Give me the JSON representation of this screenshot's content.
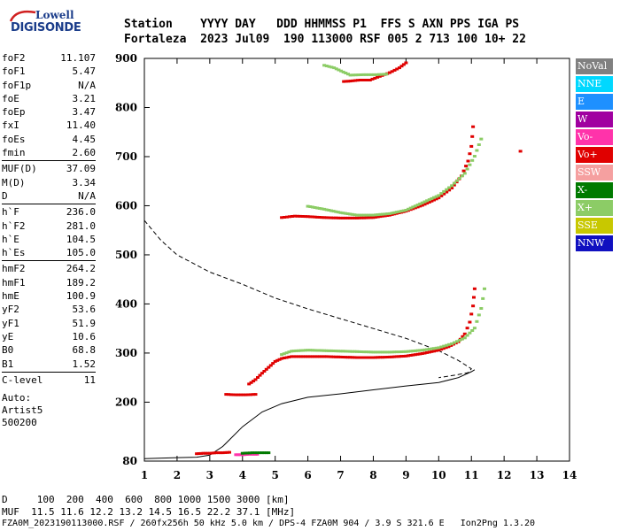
{
  "logo": {
    "line1": "Lowell",
    "line2": "DIGISONDE"
  },
  "header": {
    "line1": "Station    YYYY DAY   DDD HHMMSS P1  FFS S AXN PPS IGA PS",
    "line2": "Fortaleza  2023 Jul09  190 113000 RSF 005 2 713 100 10+ 22"
  },
  "params": [
    {
      "k": "foF2",
      "v": "11.107"
    },
    {
      "k": "foF1",
      "v": "5.47"
    },
    {
      "k": "foF1p",
      "v": "N/A"
    },
    {
      "k": "foE",
      "v": "3.21"
    },
    {
      "k": "foEp",
      "v": "3.47"
    },
    {
      "k": "fxI",
      "v": "11.40"
    },
    {
      "k": "foEs",
      "v": "4.45"
    },
    {
      "k": "fmin",
      "v": "2.60"
    },
    {
      "k": "MUF(D)",
      "v": "37.09"
    },
    {
      "k": "M(D)",
      "v": "3.34"
    },
    {
      "k": "D",
      "v": "N/A"
    },
    {
      "k": "h`F",
      "v": "236.0"
    },
    {
      "k": "h`F2",
      "v": "281.0"
    },
    {
      "k": "h`E",
      "v": "104.5"
    },
    {
      "k": "h`Es",
      "v": "105.0"
    },
    {
      "k": "hmF2",
      "v": "264.2"
    },
    {
      "k": "hmF1",
      "v": "189.2"
    },
    {
      "k": "hmE",
      "v": "100.9"
    },
    {
      "k": "yF2",
      "v": "53.6"
    },
    {
      "k": "yF1",
      "v": "51.9"
    },
    {
      "k": "yE",
      "v": "10.6"
    },
    {
      "k": "B0",
      "v": "68.8"
    },
    {
      "k": "B1",
      "v": "1.52"
    },
    {
      "k": "C-level",
      "v": "11"
    }
  ],
  "auto": {
    "l1": "Auto:",
    "l2": "Artist5",
    "l3": "500200"
  },
  "legend": [
    {
      "label": "NoVal",
      "color": "#808080"
    },
    {
      "label": "NNE",
      "color": "#00d8ff"
    },
    {
      "label": "E",
      "color": "#1e90ff"
    },
    {
      "label": "W",
      "color": "#a000a0"
    },
    {
      "label": "Vo-",
      "color": "#ff33aa"
    },
    {
      "label": "Vo+",
      "color": "#e00000"
    },
    {
      "label": "SSW",
      "color": "#f5a0a0"
    },
    {
      "label": "X-",
      "color": "#007a00"
    },
    {
      "label": "X+",
      "color": "#8ccc66"
    },
    {
      "label": "SSE",
      "color": "#c8c800"
    },
    {
      "label": "NNW",
      "color": "#1010c0"
    }
  ],
  "footer": {
    "line1": "D     100  200  400  600  800 1000 1500 3000 [km]",
    "line2": "MUF  11.5 11.6 12.2 13.2 14.5 16.5 22.2 37.1 [MHz]",
    "line3": "FZA0M_2023190113000.RSF / 260fx256h 50 kHz 5.0 km / DPS-4 FZA0M 904 / 3.9 S 321.6 E   Ion2Png 1.3.20"
  },
  "chart_data": {
    "type": "scatter",
    "xlabel": "",
    "ylabel": "",
    "xlim": [
      1,
      14
    ],
    "ylim": [
      80,
      900
    ],
    "x_ticks": [
      "1",
      "2",
      "3",
      "4",
      "5",
      "6",
      "7",
      "8",
      "9",
      "10",
      "11",
      "12",
      "13",
      "14"
    ],
    "y_ticks": [
      "80",
      "200",
      "300",
      "400",
      "500",
      "600",
      "700",
      "800",
      "900"
    ],
    "traces": [
      {
        "name": "E/Es O-mode",
        "color": "#e00000",
        "points": [
          [
            2.6,
            94
          ],
          [
            2.8,
            95
          ],
          [
            3.0,
            95
          ],
          [
            3.2,
            96
          ],
          [
            3.4,
            96
          ],
          [
            3.6,
            97
          ]
        ]
      },
      {
        "name": "E/Es pink",
        "color": "#ff33aa",
        "points": [
          [
            3.8,
            92
          ],
          [
            4.0,
            92
          ],
          [
            4.2,
            93
          ],
          [
            4.45,
            93
          ]
        ]
      },
      {
        "name": "E/Es X-mode",
        "color": "#007a00",
        "points": [
          [
            4.0,
            95
          ],
          [
            4.3,
            96
          ],
          [
            4.6,
            96
          ],
          [
            4.8,
            96
          ]
        ]
      },
      {
        "name": "F O-mode",
        "color": "#e00000",
        "points": [
          [
            4.2,
            236
          ],
          [
            4.4,
            245
          ],
          [
            4.6,
            258
          ],
          [
            4.8,
            270
          ],
          [
            5.0,
            282
          ],
          [
            5.2,
            288
          ],
          [
            5.5,
            292
          ],
          [
            6.0,
            292
          ],
          [
            6.5,
            292
          ],
          [
            7.0,
            291
          ],
          [
            7.5,
            290
          ],
          [
            8.0,
            290
          ],
          [
            8.5,
            291
          ],
          [
            9.0,
            293
          ],
          [
            9.5,
            298
          ],
          [
            10.0,
            305
          ],
          [
            10.3,
            312
          ],
          [
            10.6,
            322
          ],
          [
            10.8,
            338
          ],
          [
            10.95,
            362
          ],
          [
            11.05,
            395
          ],
          [
            11.1,
            430
          ]
        ]
      },
      {
        "name": "F X-mode",
        "color": "#8ccc66",
        "points": [
          [
            5.2,
            296
          ],
          [
            5.5,
            303
          ],
          [
            6.0,
            305
          ],
          [
            6.5,
            304
          ],
          [
            7.0,
            303
          ],
          [
            7.5,
            302
          ],
          [
            8.0,
            301
          ],
          [
            8.5,
            301
          ],
          [
            9.0,
            302
          ],
          [
            9.5,
            305
          ],
          [
            10.0,
            310
          ],
          [
            10.4,
            318
          ],
          [
            10.8,
            330
          ],
          [
            11.1,
            350
          ],
          [
            11.3,
            390
          ],
          [
            11.4,
            430
          ]
        ]
      },
      {
        "name": "F spread low",
        "color": "#e00000",
        "points": [
          [
            3.5,
            215
          ],
          [
            3.8,
            214
          ],
          [
            4.1,
            214
          ],
          [
            4.4,
            215
          ]
        ]
      },
      {
        "name": "Multi-hop O-mode",
        "color": "#e00000",
        "points": [
          [
            5.2,
            575
          ],
          [
            5.6,
            578
          ],
          [
            6.0,
            577
          ],
          [
            6.5,
            575
          ],
          [
            7.0,
            574
          ],
          [
            7.5,
            574
          ],
          [
            8.0,
            575
          ],
          [
            8.5,
            580
          ],
          [
            9.0,
            588
          ],
          [
            9.5,
            600
          ],
          [
            10.0,
            615
          ],
          [
            10.4,
            635
          ],
          [
            10.7,
            660
          ],
          [
            10.9,
            690
          ],
          [
            11.0,
            720
          ],
          [
            11.05,
            760
          ]
        ]
      },
      {
        "name": "Multi-hop X-mode",
        "color": "#8ccc66",
        "points": [
          [
            6.0,
            598
          ],
          [
            6.5,
            592
          ],
          [
            7.0,
            585
          ],
          [
            7.5,
            580
          ],
          [
            8.0,
            580
          ],
          [
            8.5,
            583
          ],
          [
            9.0,
            590
          ],
          [
            9.5,
            605
          ],
          [
            10.0,
            620
          ],
          [
            10.4,
            640
          ],
          [
            10.8,
            665
          ],
          [
            11.1,
            700
          ],
          [
            11.3,
            735
          ]
        ]
      },
      {
        "name": "Third-hop O-mode",
        "color": "#e00000",
        "points": [
          [
            7.1,
            852
          ],
          [
            7.3,
            853
          ],
          [
            7.6,
            855
          ],
          [
            7.9,
            855
          ],
          [
            8.5,
            870
          ],
          [
            8.8,
            880
          ],
          [
            9.0,
            890
          ]
        ]
      },
      {
        "name": "Third-hop X-mode",
        "color": "#8ccc66",
        "points": [
          [
            6.5,
            885
          ],
          [
            6.8,
            880
          ],
          [
            7.3,
            865
          ],
          [
            7.7,
            866
          ],
          [
            8.1,
            866
          ],
          [
            8.4,
            867
          ]
        ]
      },
      {
        "name": "Isolated",
        "color": "#e00000",
        "points": [
          [
            12.5,
            710
          ]
        ]
      }
    ],
    "profile_line": {
      "style": "solid",
      "points": [
        [
          1,
          85
        ],
        [
          2,
          87
        ],
        [
          2.6,
          88
        ],
        [
          3.0,
          92
        ],
        [
          3.4,
          110
        ],
        [
          4.0,
          150
        ],
        [
          4.6,
          180
        ],
        [
          5.2,
          197
        ],
        [
          6.0,
          210
        ],
        [
          7.0,
          217
        ],
        [
          8.0,
          225
        ],
        [
          9.0,
          233
        ],
        [
          10.0,
          240
        ],
        [
          10.6,
          250
        ],
        [
          11.0,
          262
        ],
        [
          11.1,
          266
        ]
      ]
    },
    "muf_line": {
      "style": "dashed",
      "points": [
        [
          1,
          570
        ],
        [
          1.5,
          530
        ],
        [
          2,
          500
        ],
        [
          3,
          465
        ],
        [
          4,
          440
        ],
        [
          5,
          412
        ],
        [
          6,
          390
        ],
        [
          7,
          370
        ],
        [
          8,
          350
        ],
        [
          9,
          330
        ],
        [
          10,
          305
        ],
        [
          10.6,
          285
        ],
        [
          11.0,
          268
        ],
        [
          10.9,
          260
        ],
        [
          10.5,
          255
        ],
        [
          10,
          250
        ]
      ]
    }
  }
}
